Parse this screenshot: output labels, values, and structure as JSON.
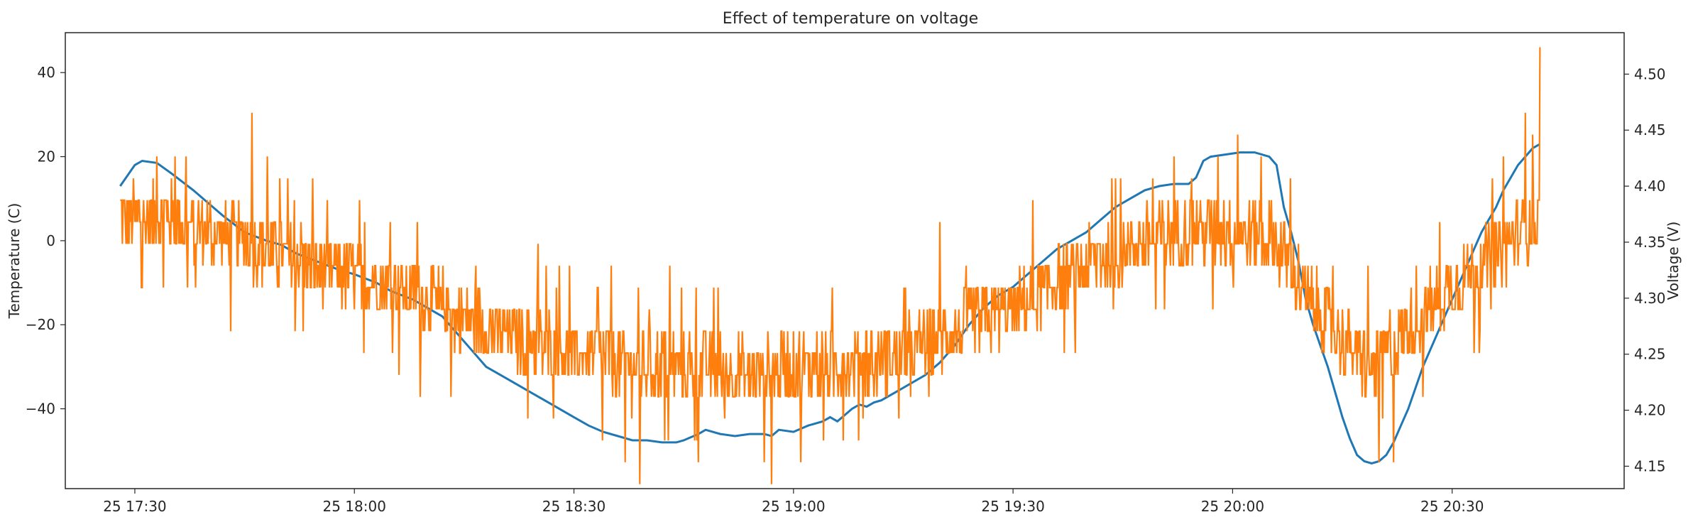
{
  "chart_data": {
    "type": "line",
    "title": "Effect of temperature on voltage",
    "xlabel": "",
    "x_ticks": [
      "25 17:30",
      "25 18:00",
      "25 18:30",
      "25 19:00",
      "25 19:30",
      "25 20:00",
      "25 20:30"
    ],
    "x_tick_minutes": [
      0,
      30,
      60,
      90,
      120,
      150,
      180
    ],
    "x_range_minutes": [
      -9.5,
      203.5
    ],
    "x_start": "25 17:30",
    "left_axis": {
      "label": "Temperature (C)",
      "ylim": [
        -59,
        49.5
      ],
      "ticks": [
        40,
        20,
        0,
        -20,
        -40
      ]
    },
    "right_axis": {
      "label": "Voltage (V)",
      "ylim": [
        4.13,
        4.537
      ],
      "ticks": [
        4.5,
        4.45,
        4.4,
        4.35,
        4.3,
        4.25,
        4.2,
        4.15
      ]
    },
    "grid": false,
    "series": [
      {
        "axis": "left",
        "color": "#1f77b4",
        "points": [
          [
            -2,
            13
          ],
          [
            0,
            18
          ],
          [
            1,
            19
          ],
          [
            3,
            18.5
          ],
          [
            5,
            16
          ],
          [
            8,
            12
          ],
          [
            10,
            9
          ],
          [
            12,
            6
          ],
          [
            15,
            2
          ],
          [
            18,
            0
          ],
          [
            20,
            -1
          ],
          [
            22,
            -3
          ],
          [
            25,
            -5
          ],
          [
            28,
            -7
          ],
          [
            30,
            -8
          ],
          [
            33,
            -10
          ],
          [
            35,
            -12
          ],
          [
            38,
            -14
          ],
          [
            40,
            -16
          ],
          [
            42,
            -18
          ],
          [
            44,
            -22
          ],
          [
            46,
            -26
          ],
          [
            48,
            -30
          ],
          [
            50,
            -32
          ],
          [
            52,
            -34
          ],
          [
            54,
            -36
          ],
          [
            56,
            -38
          ],
          [
            58,
            -40
          ],
          [
            60,
            -42
          ],
          [
            62,
            -44
          ],
          [
            64,
            -45.5
          ],
          [
            66,
            -46.5
          ],
          [
            68,
            -47.5
          ],
          [
            70,
            -47.5
          ],
          [
            72,
            -48
          ],
          [
            74,
            -48
          ],
          [
            75,
            -47.5
          ],
          [
            77,
            -46
          ],
          [
            78,
            -45
          ],
          [
            80,
            -46
          ],
          [
            82,
            -46.5
          ],
          [
            84,
            -46
          ],
          [
            86,
            -46
          ],
          [
            87,
            -46.5
          ],
          [
            88,
            -45
          ],
          [
            90,
            -45.5
          ],
          [
            92,
            -44
          ],
          [
            94,
            -43
          ],
          [
            95,
            -42
          ],
          [
            96,
            -43
          ],
          [
            98,
            -40
          ],
          [
            99,
            -39
          ],
          [
            100,
            -39.5
          ],
          [
            101,
            -38.5
          ],
          [
            102,
            -38
          ],
          [
            104,
            -36
          ],
          [
            106,
            -34
          ],
          [
            108,
            -32
          ],
          [
            110,
            -29
          ],
          [
            112,
            -25
          ],
          [
            114,
            -20
          ],
          [
            116,
            -16
          ],
          [
            118,
            -13
          ],
          [
            120,
            -11
          ],
          [
            122,
            -8
          ],
          [
            124,
            -5
          ],
          [
            126,
            -2
          ],
          [
            128,
            0
          ],
          [
            130,
            2
          ],
          [
            132,
            5
          ],
          [
            134,
            8
          ],
          [
            136,
            10
          ],
          [
            138,
            12
          ],
          [
            140,
            13
          ],
          [
            142,
            13.5
          ],
          [
            144,
            13.5
          ],
          [
            145,
            15
          ],
          [
            146,
            19
          ],
          [
            147,
            20
          ],
          [
            149,
            20.5
          ],
          [
            151,
            21
          ],
          [
            153,
            21
          ],
          [
            155,
            20
          ],
          [
            156,
            18
          ],
          [
            157,
            8
          ],
          [
            158,
            2
          ],
          [
            159,
            -5
          ],
          [
            160,
            -14
          ],
          [
            161,
            -20
          ],
          [
            162,
            -25
          ],
          [
            163,
            -30
          ],
          [
            164,
            -36
          ],
          [
            165,
            -42
          ],
          [
            166,
            -47
          ],
          [
            167,
            -51
          ],
          [
            168,
            -52.5
          ],
          [
            169,
            -53
          ],
          [
            170,
            -52.5
          ],
          [
            171,
            -51
          ],
          [
            172,
            -48
          ],
          [
            173,
            -44
          ],
          [
            174,
            -40
          ],
          [
            175,
            -35
          ],
          [
            176,
            -30
          ],
          [
            177,
            -26
          ],
          [
            178,
            -22
          ],
          [
            179,
            -18
          ],
          [
            180,
            -14
          ],
          [
            181,
            -10
          ],
          [
            182,
            -6
          ],
          [
            183,
            -2
          ],
          [
            184,
            2
          ],
          [
            185,
            5
          ],
          [
            186,
            8
          ],
          [
            187,
            12
          ],
          [
            188,
            15
          ],
          [
            189,
            18
          ],
          [
            190,
            20
          ],
          [
            191,
            22
          ],
          [
            192,
            23
          ]
        ]
      },
      {
        "axis": "right",
        "color": "#ff7f0e",
        "baseline": [
          [
            -2,
            4.37
          ],
          [
            5,
            4.37
          ],
          [
            10,
            4.36
          ],
          [
            15,
            4.35
          ],
          [
            20,
            4.34
          ],
          [
            25,
            4.33
          ],
          [
            30,
            4.32
          ],
          [
            35,
            4.31
          ],
          [
            40,
            4.3
          ],
          [
            45,
            4.28
          ],
          [
            50,
            4.27
          ],
          [
            55,
            4.26
          ],
          [
            60,
            4.25
          ],
          [
            65,
            4.245
          ],
          [
            70,
            4.24
          ],
          [
            75,
            4.24
          ],
          [
            80,
            4.235
          ],
          [
            85,
            4.235
          ],
          [
            90,
            4.24
          ],
          [
            95,
            4.24
          ],
          [
            100,
            4.245
          ],
          [
            105,
            4.25
          ],
          [
            110,
            4.265
          ],
          [
            115,
            4.28
          ],
          [
            120,
            4.29
          ],
          [
            125,
            4.31
          ],
          [
            130,
            4.33
          ],
          [
            135,
            4.345
          ],
          [
            140,
            4.355
          ],
          [
            145,
            4.36
          ],
          [
            150,
            4.36
          ],
          [
            155,
            4.355
          ],
          [
            158,
            4.33
          ],
          [
            160,
            4.3
          ],
          [
            163,
            4.28
          ],
          [
            166,
            4.255
          ],
          [
            169,
            4.24
          ],
          [
            172,
            4.26
          ],
          [
            176,
            4.285
          ],
          [
            180,
            4.31
          ],
          [
            184,
            4.33
          ],
          [
            188,
            4.35
          ],
          [
            192,
            4.37
          ]
        ],
        "spikes": [
          [
            3,
            4.43
          ],
          [
            7,
            4.43
          ],
          [
            16,
            4.46
          ],
          [
            31,
            4.29
          ],
          [
            39,
            4.22
          ],
          [
            67,
            4.16
          ],
          [
            69,
            4.14
          ],
          [
            77,
            4.16
          ],
          [
            86,
            4.16
          ],
          [
            87,
            4.14
          ],
          [
            91,
            4.16
          ],
          [
            101,
            4.21
          ],
          [
            106,
            4.21
          ],
          [
            110,
            4.36
          ],
          [
            128,
            4.35
          ],
          [
            142,
            4.43
          ],
          [
            148,
            4.43
          ],
          [
            160,
            4.29
          ],
          [
            170,
            4.16
          ],
          [
            172,
            4.16
          ],
          [
            176,
            4.21
          ],
          [
            183,
            4.26
          ],
          [
            187,
            4.43
          ],
          [
            190,
            4.46
          ],
          [
            192,
            4.52
          ]
        ]
      }
    ]
  }
}
